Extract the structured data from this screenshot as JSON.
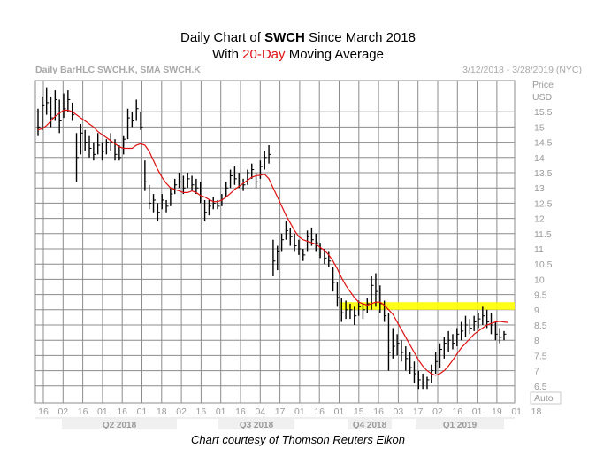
{
  "title": {
    "line1_prefix": "Daily Chart of ",
    "line1_ticker": "SWCH",
    "line1_suffix": " Since March 2018",
    "line2_prefix": "With ",
    "line2_highlight": "20-Day",
    "line2_suffix": " Moving Average"
  },
  "header": {
    "left": "Daily BarHLC SWCH.K, SMA SWCH.K",
    "right": "3/12/2018 - 3/28/2019 (NYC)"
  },
  "footer": "Chart courtesy of Thomson Reuters Eikon",
  "colors": {
    "grid": "#8c8c8c",
    "bars": "#000000",
    "sma": "#e01010",
    "highlight": "#ffff00"
  },
  "chart_data": {
    "type": "line",
    "title": "",
    "price_label": "Price",
    "currency_label": "USD",
    "auto_label": "Auto",
    "y_ticks": [
      "15.5",
      "15",
      "14.5",
      "14",
      "13.5",
      "13",
      "12.5",
      "12",
      "11.5",
      "11",
      "10.5",
      "10",
      "9.5",
      "9",
      "8.5",
      "8",
      "7.5",
      "7",
      "6.5"
    ],
    "ylim": [
      6,
      16.5
    ],
    "x_ticks": [
      "16",
      "02",
      "16",
      "01",
      "16",
      "01",
      "18",
      "02",
      "16",
      "01",
      "16",
      "04",
      "17",
      "01",
      "16",
      "01",
      "15",
      "16",
      "03",
      "17",
      "02",
      "16",
      "01",
      "19",
      "01",
      "18"
    ],
    "quarters": [
      "Q2 2018",
      "Q3 2018",
      "Q4 2018",
      "Q1 2019"
    ],
    "grid": true,
    "highlight_zone": {
      "from": 9.0,
      "to": 9.25,
      "label": ""
    },
    "series": [
      {
        "kind": "hlc-bars",
        "values": [
          [
            15.6,
            14.7,
            15.0
          ],
          [
            16.0,
            14.9,
            15.7
          ],
          [
            16.3,
            15.4,
            15.8
          ],
          [
            16.0,
            15.0,
            15.3
          ],
          [
            16.2,
            15.2,
            15.9
          ],
          [
            15.9,
            14.8,
            15.2
          ],
          [
            16.1,
            15.3,
            15.6
          ],
          [
            16.2,
            15.5,
            15.9
          ],
          [
            15.8,
            15.2,
            15.4
          ],
          [
            14.8,
            13.2,
            14.0
          ],
          [
            15.1,
            14.1,
            14.8
          ],
          [
            14.9,
            14.2,
            14.5
          ],
          [
            14.7,
            14.0,
            14.3
          ],
          [
            14.5,
            13.9,
            14.1
          ],
          [
            14.8,
            14.1,
            14.4
          ],
          [
            14.5,
            13.9,
            14.2
          ],
          [
            14.6,
            14.1,
            14.5
          ],
          [
            14.8,
            14.2,
            14.5
          ],
          [
            14.6,
            13.9,
            14.1
          ],
          [
            14.4,
            13.9,
            14.0
          ],
          [
            14.7,
            14.1,
            14.6
          ],
          [
            15.6,
            14.6,
            15.3
          ],
          [
            15.5,
            15.0,
            15.2
          ],
          [
            15.9,
            15.2,
            15.6
          ],
          [
            15.5,
            14.9,
            15.0
          ],
          [
            13.9,
            12.9,
            13.2
          ],
          [
            13.1,
            12.3,
            12.5
          ],
          [
            12.8,
            12.2,
            12.6
          ],
          [
            12.5,
            11.9,
            12.2
          ],
          [
            12.8,
            12.3,
            12.6
          ],
          [
            12.6,
            12.2,
            12.4
          ],
          [
            13.0,
            12.4,
            12.8
          ],
          [
            13.3,
            12.8,
            13.1
          ],
          [
            13.5,
            13.0,
            13.2
          ],
          [
            13.4,
            12.8,
            13.0
          ],
          [
            13.5,
            13.0,
            13.3
          ],
          [
            13.4,
            12.9,
            13.1
          ],
          [
            13.3,
            12.8,
            13.0
          ],
          [
            13.2,
            12.5,
            12.7
          ],
          [
            12.6,
            11.9,
            12.2
          ],
          [
            12.6,
            12.1,
            12.4
          ],
          [
            12.7,
            12.3,
            12.5
          ],
          [
            12.6,
            12.3,
            12.4
          ],
          [
            12.8,
            12.4,
            12.7
          ],
          [
            13.2,
            12.7,
            13.0
          ],
          [
            13.6,
            13.0,
            13.4
          ],
          [
            13.7,
            13.1,
            13.3
          ],
          [
            13.5,
            13.0,
            13.2
          ],
          [
            13.3,
            12.9,
            13.1
          ],
          [
            13.6,
            13.1,
            13.5
          ],
          [
            13.8,
            13.3,
            13.6
          ],
          [
            13.5,
            13.0,
            13.2
          ],
          [
            13.9,
            13.3,
            13.7
          ],
          [
            14.2,
            13.6,
            14.0
          ],
          [
            14.4,
            13.8,
            14.1
          ],
          [
            11.3,
            10.1,
            10.6
          ],
          [
            11.1,
            10.3,
            10.9
          ],
          [
            11.5,
            10.9,
            11.3
          ],
          [
            11.9,
            11.3,
            11.6
          ],
          [
            11.7,
            11.1,
            11.4
          ],
          [
            11.5,
            10.9,
            11.1
          ],
          [
            11.3,
            10.8,
            11.0
          ],
          [
            11.0,
            10.6,
            10.8
          ],
          [
            11.6,
            10.9,
            11.4
          ],
          [
            11.7,
            11.1,
            11.3
          ],
          [
            11.5,
            10.9,
            11.2
          ],
          [
            11.2,
            10.7,
            11.0
          ],
          [
            11.0,
            10.5,
            10.7
          ],
          [
            10.9,
            10.4,
            10.6
          ],
          [
            10.4,
            9.6,
            9.9
          ],
          [
            9.9,
            9.1,
            9.4
          ],
          [
            9.4,
            8.6,
            8.9
          ],
          [
            9.3,
            8.7,
            9.0
          ],
          [
            9.2,
            8.7,
            9.0
          ],
          [
            9.1,
            8.5,
            8.8
          ],
          [
            9.3,
            8.8,
            9.1
          ],
          [
            9.2,
            8.7,
            9.0
          ],
          [
            9.4,
            8.9,
            9.2
          ],
          [
            10.1,
            9.0,
            9.8
          ],
          [
            10.2,
            9.1,
            9.6
          ],
          [
            9.8,
            8.9,
            9.2
          ],
          [
            9.3,
            8.6,
            8.8
          ],
          [
            8.9,
            7.0,
            7.6
          ],
          [
            8.4,
            7.4,
            7.8
          ],
          [
            8.2,
            7.5,
            7.9
          ],
          [
            8.0,
            7.3,
            7.6
          ],
          [
            7.8,
            7.0,
            7.4
          ],
          [
            7.6,
            6.9,
            7.1
          ],
          [
            7.3,
            6.6,
            6.9
          ],
          [
            7.0,
            6.4,
            6.7
          ],
          [
            6.9,
            6.4,
            6.6
          ],
          [
            6.8,
            6.4,
            6.7
          ],
          [
            7.2,
            6.6,
            7.0
          ],
          [
            7.6,
            6.9,
            7.3
          ],
          [
            7.9,
            7.1,
            7.7
          ],
          [
            8.1,
            7.4,
            7.9
          ],
          [
            8.3,
            7.6,
            8.0
          ],
          [
            8.2,
            7.7,
            7.9
          ],
          [
            8.4,
            7.8,
            8.2
          ],
          [
            8.6,
            8.0,
            8.3
          ],
          [
            8.8,
            8.1,
            8.5
          ],
          [
            8.7,
            8.2,
            8.4
          ],
          [
            8.8,
            8.3,
            8.6
          ],
          [
            8.9,
            8.4,
            8.7
          ],
          [
            9.1,
            8.5,
            8.8
          ],
          [
            9.0,
            8.4,
            8.6
          ],
          [
            8.9,
            8.2,
            8.5
          ],
          [
            8.6,
            8.0,
            8.2
          ],
          [
            8.4,
            7.9,
            8.1
          ],
          [
            8.3,
            8.0,
            8.2
          ]
        ]
      },
      {
        "kind": "sma",
        "values": [
          14.9,
          14.95,
          15.05,
          15.2,
          15.35,
          15.45,
          15.55,
          15.55,
          15.5,
          15.4,
          15.3,
          15.2,
          15.1,
          15.0,
          14.85,
          14.75,
          14.65,
          14.55,
          14.45,
          14.35,
          14.3,
          14.3,
          14.3,
          14.4,
          14.45,
          14.4,
          14.2,
          13.9,
          13.6,
          13.35,
          13.15,
          13.0,
          12.95,
          12.9,
          12.85,
          12.85,
          12.9,
          12.85,
          12.75,
          12.7,
          12.62,
          12.55,
          12.55,
          12.6,
          12.7,
          12.82,
          12.95,
          13.05,
          13.15,
          13.25,
          13.35,
          13.4,
          13.42,
          13.45,
          13.3,
          13.0,
          12.7,
          12.4,
          12.1,
          11.85,
          11.6,
          11.4,
          11.3,
          11.25,
          11.2,
          11.15,
          11.05,
          10.95,
          10.8,
          10.6,
          10.35,
          10.05,
          9.8,
          9.6,
          9.4,
          9.25,
          9.2,
          9.15,
          9.2,
          9.25,
          9.25,
          9.15,
          9.0,
          8.85,
          8.6,
          8.35,
          8.1,
          7.85,
          7.6,
          7.35,
          7.15,
          7.0,
          6.9,
          6.85,
          6.9,
          7.0,
          7.15,
          7.35,
          7.55,
          7.75,
          7.9,
          8.05,
          8.2,
          8.3,
          8.4,
          8.5,
          8.55,
          8.6,
          8.62,
          8.6,
          8.58
        ]
      }
    ]
  }
}
